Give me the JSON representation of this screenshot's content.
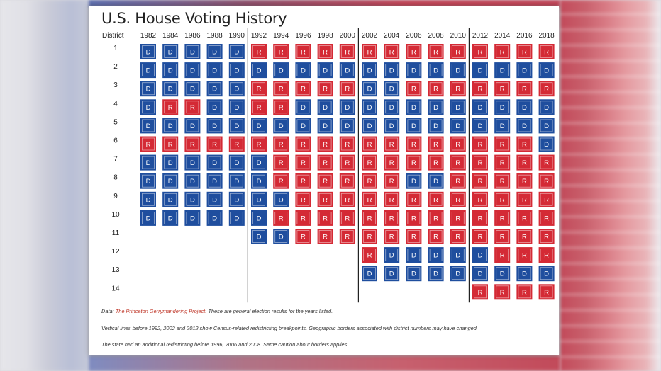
{
  "title": "U.S. House Voting History",
  "colors": {
    "D": "#1f4e9e",
    "R": "#d42a35",
    "divider": "#222222"
  },
  "chart_data": {
    "type": "table",
    "row_header": "District",
    "years": [
      "1982",
      "1984",
      "1986",
      "1988",
      "1990",
      "1992",
      "1994",
      "1996",
      "1998",
      "2000",
      "2002",
      "2004",
      "2006",
      "2008",
      "2010",
      "2012",
      "2014",
      "2016",
      "2018"
    ],
    "districts": [
      "1",
      "2",
      "3",
      "4",
      "5",
      "6",
      "7",
      "8",
      "9",
      "10",
      "11",
      "12",
      "13",
      "14"
    ],
    "results": [
      [
        "D",
        "D",
        "D",
        "D",
        "D",
        "R",
        "R",
        "R",
        "R",
        "R",
        "R",
        "R",
        "R",
        "R",
        "R",
        "R",
        "R",
        "R",
        "R"
      ],
      [
        "D",
        "D",
        "D",
        "D",
        "D",
        "D",
        "D",
        "D",
        "D",
        "D",
        "D",
        "D",
        "D",
        "D",
        "D",
        "D",
        "D",
        "D",
        "D"
      ],
      [
        "D",
        "D",
        "D",
        "D",
        "D",
        "R",
        "R",
        "R",
        "R",
        "R",
        "D",
        "D",
        "R",
        "R",
        "R",
        "R",
        "R",
        "R",
        "R"
      ],
      [
        "D",
        "R",
        "R",
        "D",
        "D",
        "R",
        "R",
        "D",
        "D",
        "D",
        "D",
        "D",
        "D",
        "D",
        "D",
        "D",
        "D",
        "D",
        "D"
      ],
      [
        "D",
        "D",
        "D",
        "D",
        "D",
        "D",
        "D",
        "D",
        "D",
        "D",
        "D",
        "D",
        "D",
        "D",
        "D",
        "D",
        "D",
        "D",
        "D"
      ],
      [
        "R",
        "R",
        "R",
        "R",
        "R",
        "R",
        "R",
        "R",
        "R",
        "R",
        "R",
        "R",
        "R",
        "R",
        "R",
        "R",
        "R",
        "R",
        "D"
      ],
      [
        "D",
        "D",
        "D",
        "D",
        "D",
        "D",
        "R",
        "R",
        "R",
        "R",
        "R",
        "R",
        "R",
        "R",
        "R",
        "R",
        "R",
        "R",
        "R"
      ],
      [
        "D",
        "D",
        "D",
        "D",
        "D",
        "D",
        "R",
        "R",
        "R",
        "R",
        "R",
        "R",
        "D",
        "D",
        "R",
        "R",
        "R",
        "R",
        "R"
      ],
      [
        "D",
        "D",
        "D",
        "D",
        "D",
        "D",
        "D",
        "R",
        "R",
        "R",
        "R",
        "R",
        "R",
        "R",
        "R",
        "R",
        "R",
        "R",
        "R"
      ],
      [
        "D",
        "D",
        "D",
        "D",
        "D",
        "D",
        "R",
        "R",
        "R",
        "R",
        "R",
        "R",
        "R",
        "R",
        "R",
        "R",
        "R",
        "R",
        "R"
      ],
      [
        "",
        "",
        "",
        "",
        "",
        "D",
        "D",
        "R",
        "R",
        "R",
        "R",
        "R",
        "R",
        "R",
        "R",
        "R",
        "R",
        "R",
        "R"
      ],
      [
        "",
        "",
        "",
        "",
        "",
        "",
        "",
        "",
        "",
        "",
        "R",
        "D",
        "D",
        "D",
        "D",
        "D",
        "R",
        "R",
        "R"
      ],
      [
        "",
        "",
        "",
        "",
        "",
        "",
        "",
        "",
        "",
        "",
        "D",
        "D",
        "D",
        "D",
        "D",
        "D",
        "D",
        "D",
        "D"
      ],
      [
        "",
        "",
        "",
        "",
        "",
        "",
        "",
        "",
        "",
        "",
        "",
        "",
        "",
        "",
        "",
        "R",
        "R",
        "R",
        "R"
      ]
    ],
    "redistricting_breaks_before": [
      "1992",
      "2002",
      "2012"
    ]
  },
  "notes": {
    "data_prefix": "Data: ",
    "data_source": "The Princeton Gerrymandering Project.",
    "data_suffix": " These are general election results for the years listed.",
    "line2_a": "Vertical lines before 1992, 2002 and 2012 show Census-related redistricting breakpoints. Geographic borders associated with district numbers ",
    "line2_may": "may",
    "line2_b": " have changed.",
    "line3": "The state had an additional redistricting before 1996, 2006 and 2008. Same caution about borders applies."
  }
}
